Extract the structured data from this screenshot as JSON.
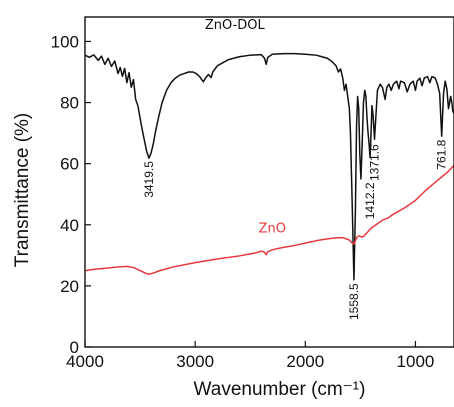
{
  "chart_data": {
    "type": "line",
    "xlabel": "Wavenumber (cm⁻¹)",
    "ylabel": "Transmittance (%)",
    "xlim": [
      4000,
      650
    ],
    "ylim": [
      0,
      108
    ],
    "x_ticks": [
      4000,
      3000,
      2000,
      1000
    ],
    "y_ticks": [
      0,
      20,
      40,
      60,
      80,
      100
    ],
    "grid": false,
    "x_axis_reversed": true,
    "series": [
      {
        "name": "ZnO-DOL",
        "color": "#111111",
        "label_at": [
          2640,
          104
        ],
        "points": [
          [
            4000,
            95.5
          ],
          [
            3960,
            94.8
          ],
          [
            3920,
            95.6
          ],
          [
            3880,
            93.8
          ],
          [
            3850,
            95.2
          ],
          [
            3820,
            92.5
          ],
          [
            3790,
            94.5
          ],
          [
            3760,
            91.8
          ],
          [
            3730,
            93.6
          ],
          [
            3700,
            89.5
          ],
          [
            3680,
            91.5
          ],
          [
            3660,
            88.6
          ],
          [
            3640,
            91.2
          ],
          [
            3620,
            86.5
          ],
          [
            3600,
            89.8
          ],
          [
            3580,
            85.0
          ],
          [
            3560,
            87.5
          ],
          [
            3540,
            81.0
          ],
          [
            3520,
            79.0
          ],
          [
            3500,
            75.0
          ],
          [
            3480,
            71.0
          ],
          [
            3460,
            67.5
          ],
          [
            3440,
            64.0
          ],
          [
            3419.5,
            61.8
          ],
          [
            3400,
            63.5
          ],
          [
            3380,
            66.5
          ],
          [
            3360,
            70.5
          ],
          [
            3330,
            75.5
          ],
          [
            3300,
            80.0
          ],
          [
            3260,
            84.0
          ],
          [
            3220,
            86.5
          ],
          [
            3180,
            88.0
          ],
          [
            3140,
            89.0
          ],
          [
            3100,
            89.5
          ],
          [
            3060,
            90.0
          ],
          [
            3020,
            90.0
          ],
          [
            2990,
            89.5
          ],
          [
            2960,
            88.5
          ],
          [
            2940,
            87.5
          ],
          [
            2925,
            86.8
          ],
          [
            2910,
            87.8
          ],
          [
            2880,
            89.2
          ],
          [
            2855,
            88.2
          ],
          [
            2840,
            90.0
          ],
          [
            2800,
            92.0
          ],
          [
            2750,
            93.0
          ],
          [
            2700,
            94.0
          ],
          [
            2650,
            94.5
          ],
          [
            2600,
            95.0
          ],
          [
            2500,
            95.5
          ],
          [
            2400,
            95.7
          ],
          [
            2370,
            94.5
          ],
          [
            2355,
            92.5
          ],
          [
            2340,
            94.8
          ],
          [
            2300,
            95.8
          ],
          [
            2200,
            96.0
          ],
          [
            2100,
            96.0
          ],
          [
            2000,
            95.8
          ],
          [
            1900,
            95.5
          ],
          [
            1850,
            95.0
          ],
          [
            1800,
            94.5
          ],
          [
            1760,
            93.5
          ],
          [
            1720,
            92.0
          ],
          [
            1700,
            90.0
          ],
          [
            1680,
            91.0
          ],
          [
            1660,
            88.0
          ],
          [
            1645,
            84.0
          ],
          [
            1630,
            86.0
          ],
          [
            1615,
            82.0
          ],
          [
            1600,
            78.0
          ],
          [
            1590,
            70.0
          ],
          [
            1575,
            48.0
          ],
          [
            1558.5,
            22.0
          ],
          [
            1545,
            45.0
          ],
          [
            1535,
            72.0
          ],
          [
            1525,
            82.0
          ],
          [
            1515,
            78.0
          ],
          [
            1505,
            63.0
          ],
          [
            1495,
            55.0
          ],
          [
            1485,
            65.0
          ],
          [
            1472,
            80.0
          ],
          [
            1460,
            84.0
          ],
          [
            1450,
            82.0
          ],
          [
            1440,
            75.0
          ],
          [
            1430,
            70.0
          ],
          [
            1420,
            66.0
          ],
          [
            1412.2,
            62.0
          ],
          [
            1405,
            68.0
          ],
          [
            1395,
            79.0
          ],
          [
            1385,
            76.0
          ],
          [
            1371.6,
            68.0
          ],
          [
            1360,
            75.0
          ],
          [
            1345,
            84.0
          ],
          [
            1320,
            86.0
          ],
          [
            1300,
            85.0
          ],
          [
            1275,
            81.0
          ],
          [
            1260,
            85.0
          ],
          [
            1240,
            86.0
          ],
          [
            1220,
            84.0
          ],
          [
            1200,
            86.0
          ],
          [
            1170,
            87.0
          ],
          [
            1150,
            84.5
          ],
          [
            1135,
            87.0
          ],
          [
            1100,
            86.5
          ],
          [
            1075,
            83.5
          ],
          [
            1050,
            86.0
          ],
          [
            1020,
            87.0
          ],
          [
            1000,
            84.0
          ],
          [
            985,
            87.0
          ],
          [
            960,
            88.0
          ],
          [
            940,
            85.5
          ],
          [
            920,
            88.0
          ],
          [
            890,
            88.5
          ],
          [
            870,
            86.5
          ],
          [
            850,
            88.5
          ],
          [
            820,
            88.0
          ],
          [
            800,
            86.0
          ],
          [
            780,
            83.0
          ],
          [
            761.8,
            69.0
          ],
          [
            745,
            83.0
          ],
          [
            730,
            87.0
          ],
          [
            715,
            84.5
          ],
          [
            700,
            78.0
          ],
          [
            690,
            80.0
          ],
          [
            680,
            82.0
          ],
          [
            670,
            80.0
          ],
          [
            660,
            77.0
          ],
          [
            650,
            76.5
          ]
        ]
      },
      {
        "name": "ZnO",
        "color": "#e8383d",
        "label_at": [
          2300,
          37.5
        ],
        "points": [
          [
            4000,
            25.0
          ],
          [
            3900,
            25.5
          ],
          [
            3800,
            25.8
          ],
          [
            3700,
            26.2
          ],
          [
            3620,
            26.4
          ],
          [
            3560,
            26.0
          ],
          [
            3500,
            25.0
          ],
          [
            3440,
            24.0
          ],
          [
            3420,
            23.8
          ],
          [
            3380,
            24.2
          ],
          [
            3320,
            25.0
          ],
          [
            3200,
            26.2
          ],
          [
            3000,
            27.6
          ],
          [
            2800,
            28.8
          ],
          [
            2600,
            29.8
          ],
          [
            2450,
            30.8
          ],
          [
            2400,
            31.4
          ],
          [
            2370,
            31.0
          ],
          [
            2355,
            30.2
          ],
          [
            2340,
            31.2
          ],
          [
            2300,
            31.8
          ],
          [
            2200,
            32.6
          ],
          [
            2100,
            33.2
          ],
          [
            2000,
            34.0
          ],
          [
            1900,
            34.8
          ],
          [
            1800,
            35.4
          ],
          [
            1700,
            35.8
          ],
          [
            1650,
            35.7
          ],
          [
            1600,
            35.0
          ],
          [
            1580,
            34.2
          ],
          [
            1560,
            33.6
          ],
          [
            1545,
            34.8
          ],
          [
            1530,
            36.0
          ],
          [
            1510,
            36.4
          ],
          [
            1490,
            36.0
          ],
          [
            1470,
            36.2
          ],
          [
            1430,
            37.8
          ],
          [
            1400,
            39.0
          ],
          [
            1350,
            40.2
          ],
          [
            1300,
            41.5
          ],
          [
            1250,
            42.2
          ],
          [
            1200,
            43.5
          ],
          [
            1100,
            45.5
          ],
          [
            1000,
            48.0
          ],
          [
            900,
            51.5
          ],
          [
            800,
            54.5
          ],
          [
            700,
            57.5
          ],
          [
            650,
            59.5
          ]
        ]
      }
    ],
    "annotations": [
      {
        "text": "3419.5",
        "x": 3419.5,
        "y": 61.5
      },
      {
        "text": "1558.5",
        "x": 1558.5,
        "y": 21.5
      },
      {
        "text": "1412.2",
        "x": 1412.2,
        "y": 54.5
      },
      {
        "text": "1371.6",
        "x": 1371.6,
        "y": 67.0
      },
      {
        "text": "761.8",
        "x": 761.8,
        "y": 68.5
      }
    ]
  }
}
